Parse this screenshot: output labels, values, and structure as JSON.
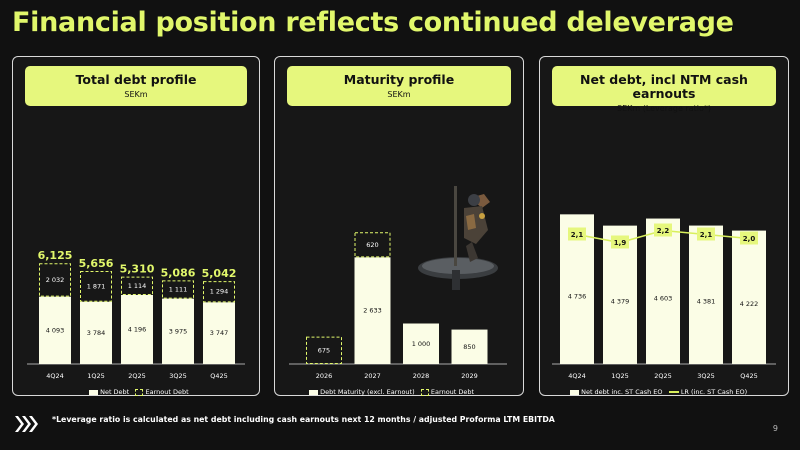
{
  "title": "Financial position reflects continued deleverage",
  "footnote": "*Leverage ratio is calculated as net debt including cash earnouts next 12 months / adjusted Proforma LTM EBITDA",
  "page_number": "9",
  "colors": {
    "accent": "#e1f76b",
    "bar": "#fbfde6",
    "line": "#d8ef5c",
    "background": "#111111"
  },
  "panels": {
    "total_debt": {
      "title": "Total debt profile",
      "subtitle": "SEKm",
      "legend": [
        "Net Debt",
        "Earnout Debt"
      ]
    },
    "maturity": {
      "title": "Maturity profile",
      "subtitle": "SEKm",
      "legend": [
        "Debt Maturity (excl. Earnout)",
        "Earnout Debt"
      ]
    },
    "net_debt": {
      "title": "Net debt, incl NTM cash earnouts",
      "subtitle": "SEKm (Leverage ratio*)",
      "legend": [
        "Net debt inc. ST Cash EO",
        "LR (inc. ST Cash EO)"
      ]
    }
  },
  "chart_data": [
    {
      "type": "bar",
      "stacked": true,
      "title": "Total debt profile",
      "unit": "SEKm",
      "categories": [
        "4Q24",
        "1Q25",
        "2Q25",
        "3Q25",
        "Q425"
      ],
      "series": [
        {
          "name": "Net Debt",
          "values": [
            4093,
            3784,
            4196,
            3975,
            3747
          ],
          "labels": [
            "4 093",
            "3 784",
            "4 196",
            "3 975",
            "3 747"
          ]
        },
        {
          "name": "Earnout Debt",
          "values": [
            2032,
            1871,
            1114,
            1111,
            1294
          ],
          "labels": [
            "2 032",
            "1 871",
            "1 114",
            "1 111",
            "1 294"
          ]
        }
      ],
      "totals": [
        6125,
        5656,
        5310,
        5086,
        5042
      ],
      "total_labels": [
        "6,125",
        "5,656",
        "5,310",
        "5,086",
        "5,042"
      ]
    },
    {
      "type": "bar",
      "stacked": true,
      "title": "Maturity profile",
      "unit": "SEKm",
      "categories": [
        "2026",
        "2027",
        "2028",
        "2029"
      ],
      "series": [
        {
          "name": "Debt Maturity (excl. Earnout)",
          "values": [
            0,
            2633,
            1000,
            850
          ],
          "labels": [
            "",
            "2 633",
            "1 000",
            "850"
          ]
        },
        {
          "name": "Earnout Debt",
          "values": [
            675,
            620,
            0,
            0
          ],
          "labels": [
            "675",
            "620",
            "",
            ""
          ]
        }
      ]
    },
    {
      "type": "bar",
      "title": "Net debt, incl NTM cash earnouts",
      "unit": "SEKm",
      "categories": [
        "4Q24",
        "1Q25",
        "2Q25",
        "3Q25",
        "Q425"
      ],
      "series": [
        {
          "name": "Net debt inc. ST Cash EO",
          "type": "bar",
          "values": [
            4736,
            4379,
            4603,
            4381,
            4222
          ],
          "labels": [
            "4 736",
            "4 379",
            "4 603",
            "4 381",
            "4 222"
          ]
        },
        {
          "name": "LR (inc. ST Cash EO)",
          "type": "line",
          "values": [
            2.1,
            1.9,
            2.2,
            2.1,
            2.0
          ],
          "labels": [
            "2,1",
            "1,9",
            "2,2",
            "2,1",
            "2,0"
          ]
        }
      ]
    }
  ]
}
